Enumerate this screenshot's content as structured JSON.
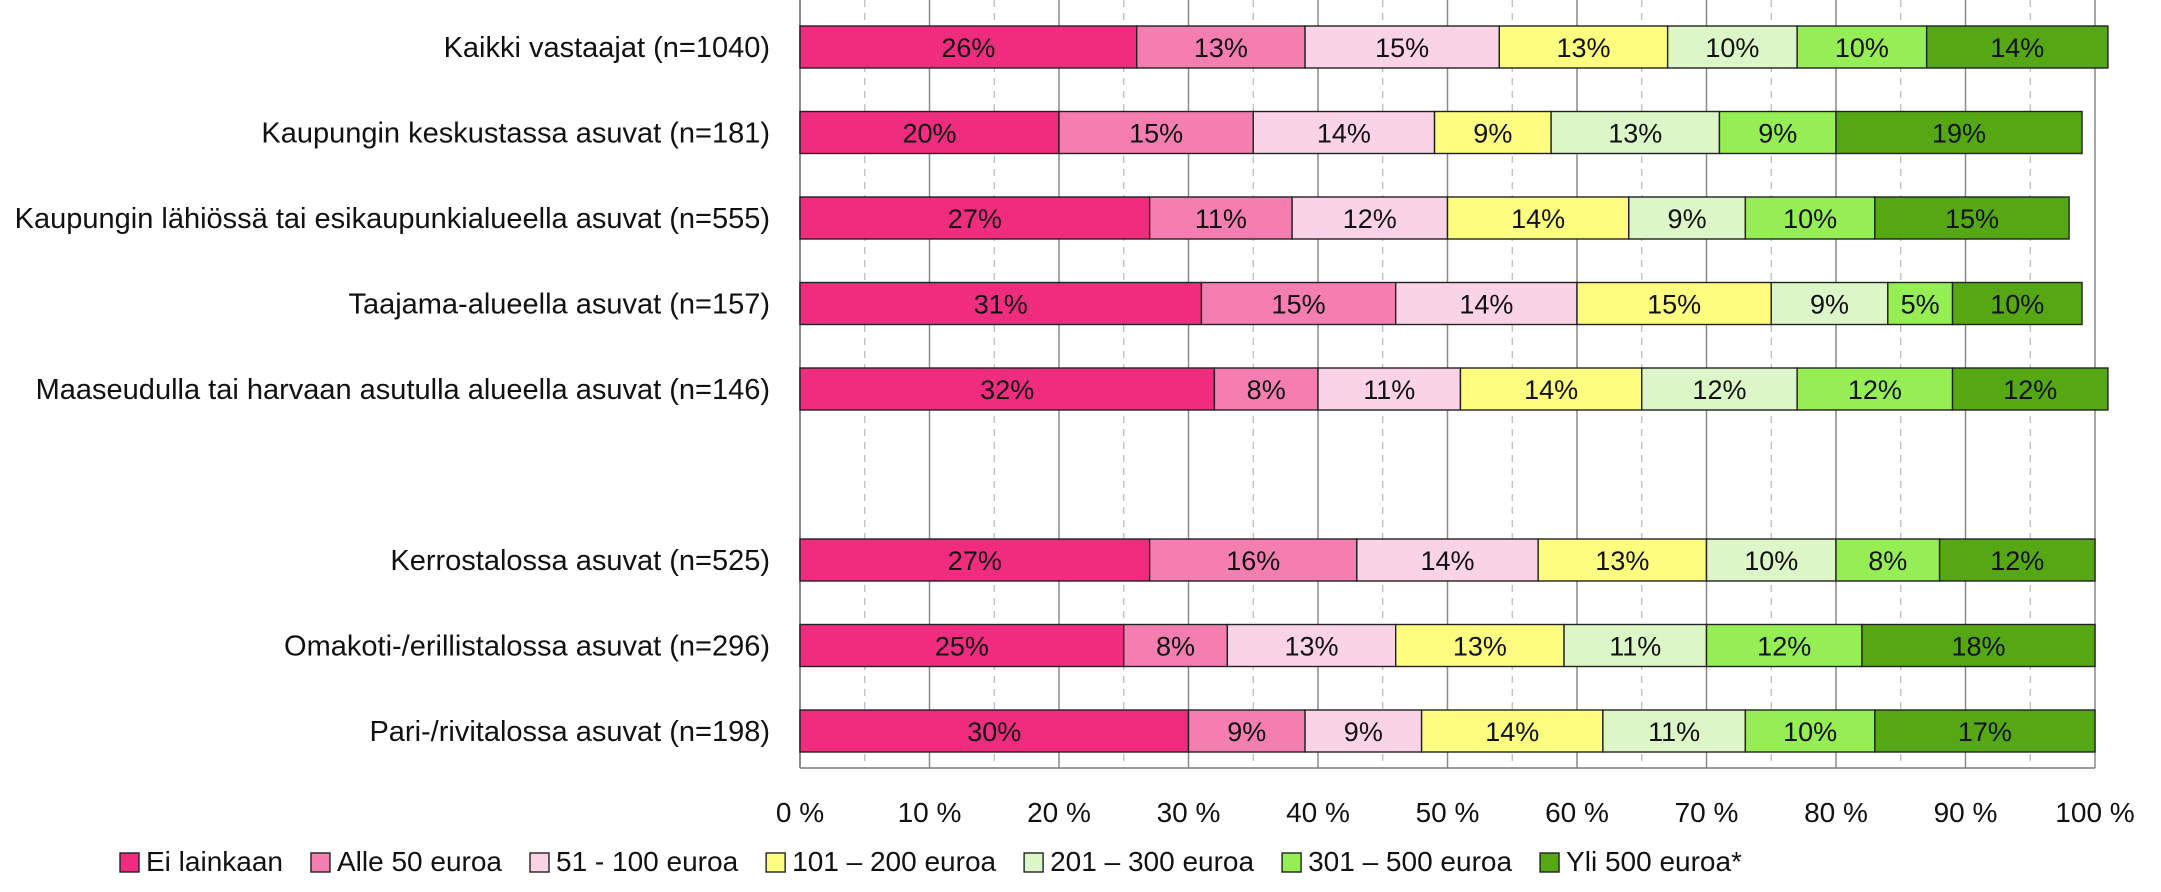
{
  "chart_data": {
    "type": "bar",
    "orientation": "horizontal",
    "stacked": "percent",
    "title": "",
    "xlabel": "",
    "ylabel": "",
    "xlim": [
      0,
      100
    ],
    "x_ticks": [
      "0 %",
      "10 %",
      "20 %",
      "30 %",
      "40 %",
      "50 %",
      "60 %",
      "70 %",
      "80 %",
      "90 %",
      "100 %"
    ],
    "grid": "vertical, major solid and minor dashed",
    "legend_position": "bottom",
    "value_label_suffix": "%",
    "categories": [
      "Kaikki vastaajat (n=1040)",
      "Kaupungin keskustassa asuvat (n=181)",
      "Kaupungin lähiössä tai esikaupunkialueella asuvat (n=555)",
      "Taajama-alueella asuvat (n=157)",
      "Maaseudulla tai harvaan asutulla alueella asuvat (n=146)",
      "",
      "Kerrostalossa asuvat (n=525)",
      "Omakoti-/erillistalossa asuvat (n=296)",
      "Pari-/rivitalossa asuvat (n=198)"
    ],
    "series": [
      {
        "name": "Ei lainkaan",
        "color": "#F02C7E",
        "values": [
          26,
          20,
          27,
          31,
          32,
          null,
          27,
          25,
          30
        ]
      },
      {
        "name": "Alle 50 euroa",
        "color": "#F47EB0",
        "values": [
          13,
          15,
          11,
          15,
          8,
          null,
          16,
          8,
          9
        ]
      },
      {
        "name": "51 - 100 euroa",
        "color": "#FAD3E6",
        "values": [
          15,
          14,
          12,
          14,
          11,
          null,
          14,
          13,
          9
        ]
      },
      {
        "name": "101 – 200 euroa",
        "color": "#FDFD80",
        "values": [
          13,
          9,
          14,
          15,
          14,
          null,
          13,
          13,
          14
        ]
      },
      {
        "name": "201 – 300 euroa",
        "color": "#DDF6C8",
        "values": [
          10,
          13,
          9,
          9,
          12,
          null,
          10,
          11,
          11
        ]
      },
      {
        "name": "301 – 500 euroa",
        "color": "#96EE55",
        "values": [
          10,
          9,
          10,
          5,
          12,
          null,
          8,
          12,
          10
        ]
      },
      {
        "name": "Yli 500 euroa*",
        "color": "#55A813",
        "values": [
          14,
          19,
          15,
          10,
          12,
          null,
          12,
          18,
          17
        ]
      }
    ]
  }
}
